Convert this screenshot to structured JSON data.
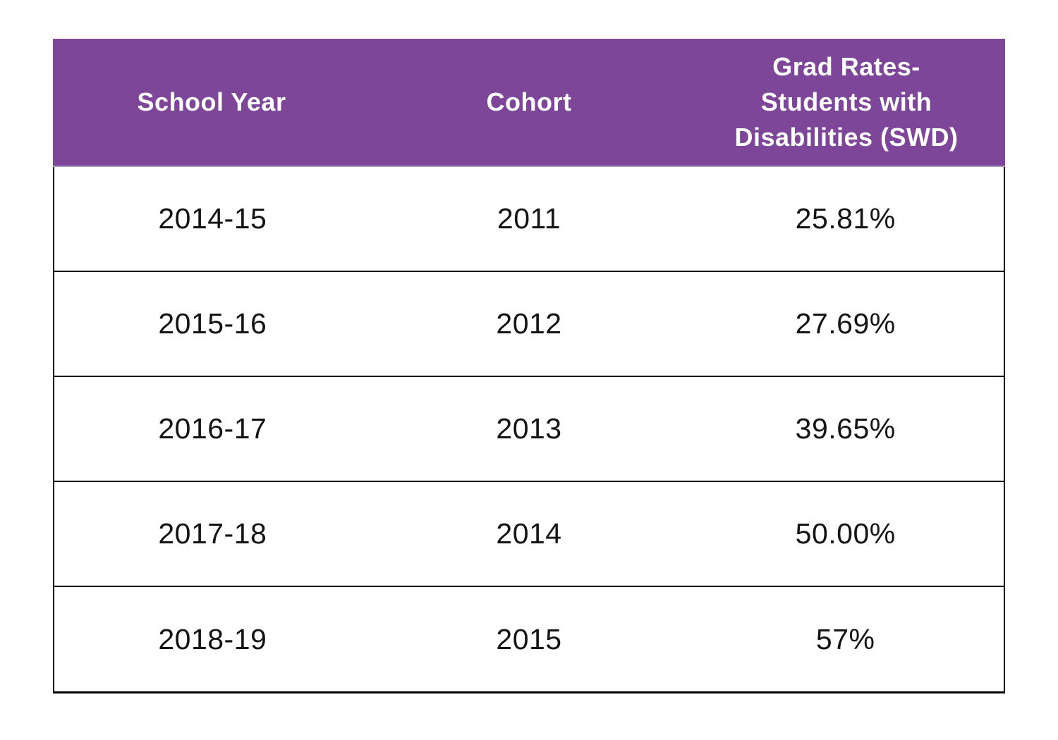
{
  "chart_data": {
    "type": "table",
    "title": "",
    "columns": [
      "School Year",
      "Cohort",
      "Grad Rates- Students with Disabilities (SWD)"
    ],
    "rows": [
      [
        "2014-15",
        "2011",
        "25.81%"
      ],
      [
        "2015-16",
        "2012",
        "27.69%"
      ],
      [
        "2016-17",
        "2013",
        "39.65%"
      ],
      [
        "2017-18",
        "2014",
        "50.00%"
      ],
      [
        "2018-19",
        "2015",
        "57%"
      ]
    ]
  },
  "table": {
    "header_cells": [
      "School Year",
      "Cohort",
      "Grad Rates-\nStudents with\nDisabilities (SWD)"
    ],
    "rows": [
      [
        "2014-15",
        "2011",
        "25.81%"
      ],
      [
        "2015-16",
        "2012",
        "27.69%"
      ],
      [
        "2016-17",
        "2013",
        "39.65%"
      ],
      [
        "2017-18",
        "2014",
        "50.00%"
      ],
      [
        "2018-19",
        "2015",
        "57%"
      ]
    ]
  },
  "colors": {
    "header_background": "#7d4699",
    "header_text": "#ffffff",
    "body_text": "#141414",
    "border": "#000000"
  }
}
